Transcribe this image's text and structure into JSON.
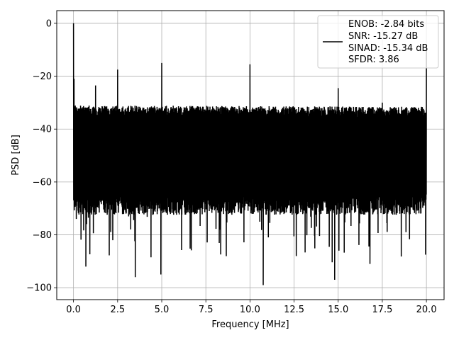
{
  "chart_data": {
    "type": "line",
    "xlabel": "Frequency [MHz]",
    "ylabel": "PSD [dB]",
    "xlim": [
      -0.95,
      21.0
    ],
    "ylim": [
      -104.5,
      4.8
    ],
    "xticks": [
      0.0,
      2.5,
      5.0,
      7.5,
      10.0,
      12.5,
      15.0,
      17.5,
      20.0
    ],
    "xtick_labels": [
      "0.0",
      "2.5",
      "5.0",
      "7.5",
      "10.0",
      "12.5",
      "15.0",
      "17.5",
      "20.0"
    ],
    "yticks": [
      0,
      -20,
      -40,
      -60,
      -80,
      -100
    ],
    "ytick_labels": [
      "0",
      "−20",
      "−40",
      "−60",
      "−80",
      "−100"
    ],
    "grid": true,
    "legend_placement": "top-right",
    "legend_lines": [
      "ENOB: -2.84 bits",
      "SNR: -15.27 dB",
      "SINAD: -15.34 dB",
      "SFDR: 3.86"
    ],
    "series_color": "#000000",
    "noise_floor": {
      "upper_db": -33,
      "lower_db": -70,
      "min_dips_db": -90
    },
    "spikes": [
      {
        "x": 0.0,
        "y": 0.0
      },
      {
        "x": 0.03,
        "y": -21.0
      },
      {
        "x": 1.25,
        "y": -23.5
      },
      {
        "x": 2.5,
        "y": -17.5
      },
      {
        "x": 5.0,
        "y": -15.0
      },
      {
        "x": 10.0,
        "y": -15.5
      },
      {
        "x": 15.0,
        "y": -24.5
      },
      {
        "x": 17.5,
        "y": -30.0
      },
      {
        "x": 20.0,
        "y": -8.5
      }
    ],
    "dips": [
      {
        "x": 0.7,
        "y": -92.0
      },
      {
        "x": 3.5,
        "y": -96.0
      },
      {
        "x": 4.95,
        "y": -95.0
      },
      {
        "x": 10.75,
        "y": -99.0
      },
      {
        "x": 14.8,
        "y": -97.0
      },
      {
        "x": 16.8,
        "y": -91.0
      },
      {
        "x": 19.95,
        "y": -87.5
      }
    ]
  }
}
